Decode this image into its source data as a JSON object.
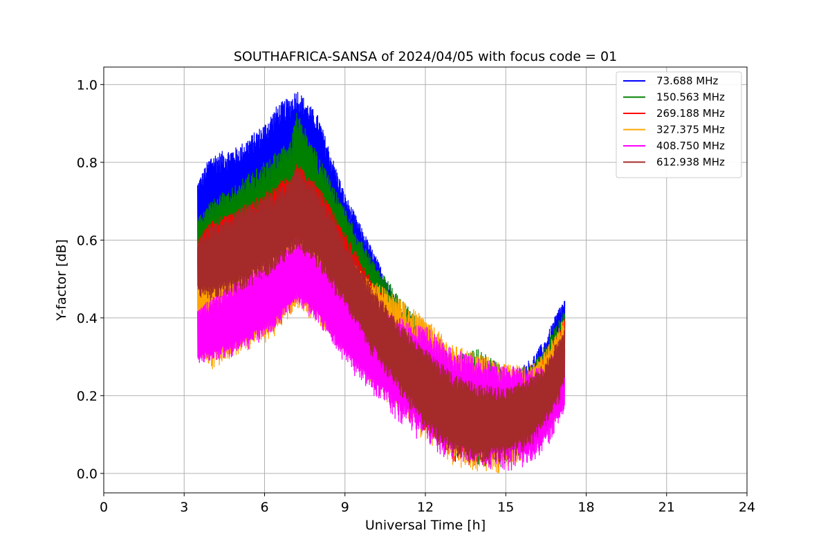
{
  "chart_data": {
    "type": "line",
    "title": "SOUTHAFRICA-SANSA of 2024/04/05 with focus code = 01",
    "xlabel": "Universal Time [h]",
    "ylabel": "Y-factor [dB]",
    "xlim": [
      0,
      24
    ],
    "ylim": [
      -0.05,
      1.045
    ],
    "xticks": [
      0,
      3,
      6,
      9,
      12,
      15,
      18,
      21,
      24
    ],
    "yticks": [
      0.0,
      0.2,
      0.4,
      0.6,
      0.8,
      1.0
    ],
    "xtick_labels": [
      "0",
      "3",
      "6",
      "9",
      "12",
      "15",
      "18",
      "21",
      "24"
    ],
    "ytick_labels": [
      "0.0",
      "0.2",
      "0.4",
      "0.6",
      "0.8",
      "1.0"
    ],
    "grid": true,
    "legend_position": "top-right",
    "series": [
      {
        "name": "73.688 MHz",
        "color": "#0000ff",
        "x": [
          3.5,
          4.0,
          5.0,
          6.0,
          6.5,
          7.0,
          7.2,
          8.0,
          9.0,
          10.0,
          11.0,
          12.0,
          13.0,
          14.0,
          15.0,
          16.0,
          16.5,
          17.0,
          17.2
        ],
        "upper": [
          0.75,
          0.82,
          0.84,
          0.9,
          0.95,
          0.97,
          0.99,
          0.92,
          0.72,
          0.58,
          0.44,
          0.36,
          0.3,
          0.24,
          0.24,
          0.3,
          0.35,
          0.43,
          0.45
        ],
        "lower": [
          0.55,
          0.55,
          0.58,
          0.62,
          0.65,
          0.7,
          0.72,
          0.65,
          0.5,
          0.38,
          0.25,
          0.14,
          0.06,
          0.01,
          0.02,
          0.08,
          0.14,
          0.2,
          0.25
        ]
      },
      {
        "name": "150.563 MHz",
        "color": "#008000",
        "x": [
          3.5,
          4.0,
          5.0,
          6.0,
          6.5,
          7.0,
          7.2,
          8.0,
          9.0,
          10.0,
          11.0,
          12.0,
          13.0,
          14.0,
          15.0,
          16.0,
          16.5,
          17.0,
          17.2
        ],
        "upper": [
          0.66,
          0.7,
          0.75,
          0.8,
          0.83,
          0.86,
          0.93,
          0.82,
          0.68,
          0.55,
          0.46,
          0.37,
          0.3,
          0.32,
          0.27,
          0.28,
          0.33,
          0.4,
          0.42
        ],
        "lower": [
          0.5,
          0.48,
          0.5,
          0.52,
          0.55,
          0.58,
          0.6,
          0.55,
          0.45,
          0.34,
          0.22,
          0.12,
          0.05,
          0.01,
          0.01,
          0.07,
          0.13,
          0.2,
          0.24
        ]
      },
      {
        "name": "269.188 MHz",
        "color": "#ff0000",
        "x": [
          3.5,
          4.0,
          5.0,
          6.0,
          6.5,
          7.0,
          7.2,
          8.0,
          9.0,
          10.0,
          11.0,
          12.0,
          13.0,
          14.0,
          15.0,
          16.0,
          16.5,
          17.0,
          17.2
        ],
        "upper": [
          0.6,
          0.65,
          0.68,
          0.72,
          0.75,
          0.77,
          0.8,
          0.74,
          0.62,
          0.5,
          0.4,
          0.33,
          0.27,
          0.24,
          0.23,
          0.26,
          0.3,
          0.37,
          0.4
        ],
        "lower": [
          0.46,
          0.44,
          0.46,
          0.5,
          0.52,
          0.55,
          0.57,
          0.52,
          0.42,
          0.3,
          0.2,
          0.1,
          0.03,
          0.0,
          0.02,
          0.06,
          0.12,
          0.18,
          0.22
        ]
      },
      {
        "name": "327.375 MHz",
        "color": "#ffa500",
        "x": [
          3.5,
          4.0,
          5.0,
          6.0,
          6.5,
          7.0,
          7.2,
          8.0,
          9.0,
          10.0,
          11.0,
          12.0,
          13.0,
          14.0,
          15.0,
          16.0,
          16.5,
          17.0,
          17.2
        ],
        "upper": [
          0.5,
          0.52,
          0.55,
          0.58,
          0.6,
          0.62,
          0.64,
          0.6,
          0.56,
          0.5,
          0.45,
          0.4,
          0.33,
          0.31,
          0.28,
          0.28,
          0.32,
          0.38,
          0.4
        ],
        "lower": [
          0.3,
          0.26,
          0.3,
          0.33,
          0.36,
          0.4,
          0.42,
          0.38,
          0.3,
          0.22,
          0.15,
          0.08,
          0.02,
          0.0,
          0.0,
          0.05,
          0.1,
          0.15,
          0.18
        ]
      },
      {
        "name": "408.750 MHz",
        "color": "#ff00ff",
        "x": [
          3.5,
          4.0,
          5.0,
          6.0,
          6.5,
          7.0,
          7.2,
          8.0,
          9.0,
          10.0,
          11.0,
          12.0,
          13.0,
          14.0,
          15.0,
          16.0,
          16.5,
          17.0,
          17.2
        ],
        "upper": [
          0.42,
          0.45,
          0.5,
          0.54,
          0.57,
          0.6,
          0.61,
          0.56,
          0.48,
          0.43,
          0.4,
          0.38,
          0.32,
          0.3,
          0.28,
          0.27,
          0.28,
          0.33,
          0.35
        ],
        "lower": [
          0.28,
          0.28,
          0.3,
          0.34,
          0.37,
          0.41,
          0.43,
          0.38,
          0.28,
          0.2,
          0.13,
          0.07,
          0.03,
          0.01,
          0.0,
          0.02,
          0.06,
          0.12,
          0.15
        ]
      },
      {
        "name": "612.938 MHz",
        "color": "#a52a2a",
        "x": [
          3.5,
          4.0,
          5.0,
          6.0,
          6.5,
          7.0,
          7.2,
          8.0,
          9.0,
          10.0,
          11.0,
          12.0,
          13.0,
          14.0,
          15.0,
          16.0,
          16.5,
          17.0,
          17.2
        ],
        "upper": [
          0.6,
          0.64,
          0.68,
          0.71,
          0.73,
          0.76,
          0.79,
          0.73,
          0.6,
          0.48,
          0.39,
          0.32,
          0.26,
          0.23,
          0.22,
          0.25,
          0.29,
          0.35,
          0.38
        ],
        "lower": [
          0.45,
          0.44,
          0.46,
          0.5,
          0.52,
          0.55,
          0.57,
          0.52,
          0.42,
          0.3,
          0.2,
          0.1,
          0.04,
          0.02,
          0.03,
          0.07,
          0.12,
          0.18,
          0.22
        ]
      }
    ]
  }
}
